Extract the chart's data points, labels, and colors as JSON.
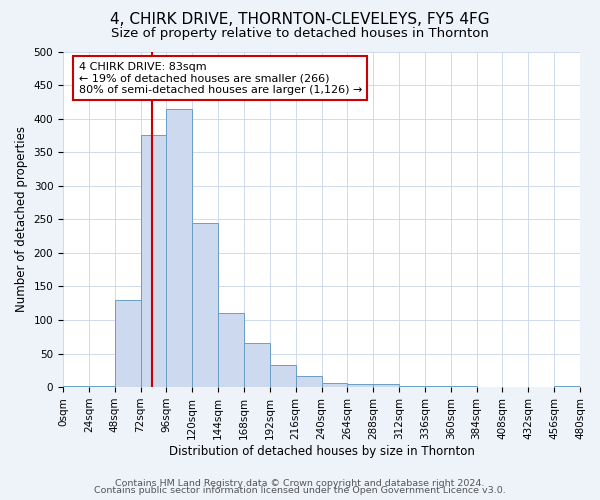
{
  "title": "4, CHIRK DRIVE, THORNTON-CLEVELEYS, FY5 4FG",
  "subtitle": "Size of property relative to detached houses in Thornton",
  "xlabel": "Distribution of detached houses by size in Thornton",
  "ylabel": "Number of detached properties",
  "footnote1": "Contains HM Land Registry data © Crown copyright and database right 2024.",
  "footnote2": "Contains public sector information licensed under the Open Government Licence v3.0.",
  "bin_edges": [
    0,
    24,
    48,
    72,
    96,
    120,
    144,
    168,
    192,
    216,
    240,
    264,
    288,
    312,
    336,
    360,
    384,
    408,
    432,
    456,
    480
  ],
  "bar_values": [
    2,
    2,
    130,
    375,
    415,
    245,
    110,
    65,
    33,
    17,
    6,
    4,
    4,
    2,
    2,
    1,
    0,
    0,
    0,
    1
  ],
  "bar_color": "#ccd9ee",
  "bar_edge_color": "#6a9ec3",
  "vline_x": 83,
  "vline_color": "#cc0000",
  "ylim": [
    0,
    500
  ],
  "annotation_text_line1": "4 CHIRK DRIVE: 83sqm",
  "annotation_text_line2": "← 19% of detached houses are smaller (266)",
  "annotation_text_line3": "80% of semi-detached houses are larger (1,126) →",
  "background_color": "#eef2f9",
  "plot_bg_color": "#ffffff",
  "title_fontsize": 11,
  "subtitle_fontsize": 9.5,
  "axis_label_fontsize": 8.5,
  "tick_fontsize": 7.5,
  "annotation_fontsize": 8,
  "footnote_fontsize": 6.8
}
